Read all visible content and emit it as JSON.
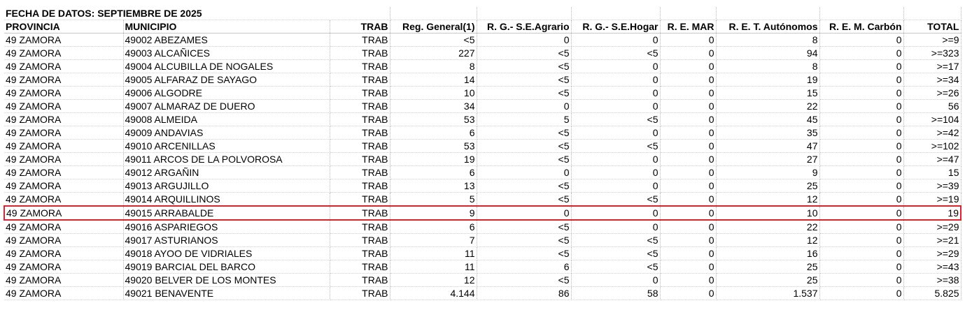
{
  "table": {
    "title": "FECHA DE DATOS: SEPTIEMBRE DE 2025",
    "columns": [
      "PROVINCIA",
      "MUNICIPIO",
      "TRAB",
      "Reg. General(1)",
      "R. G.- S.E.Agrario",
      "R. G.- S.E.Hogar",
      "R. E. MAR",
      "R. E. T. Autónomos",
      "R. E. M. Carbón",
      "TOTAL"
    ],
    "highlight_row": 13,
    "rows": [
      [
        "49 ZAMORA",
        "49002 ABEZAMES",
        "TRAB",
        "<5",
        "0",
        "0",
        "0",
        "8",
        "0",
        ">=9"
      ],
      [
        "49 ZAMORA",
        "49003 ALCAÑICES",
        "TRAB",
        "227",
        "<5",
        "<5",
        "0",
        "94",
        "0",
        ">=323"
      ],
      [
        "49 ZAMORA",
        "49004 ALCUBILLA DE NOGALES",
        "TRAB",
        "8",
        "<5",
        "0",
        "0",
        "8",
        "0",
        ">=17"
      ],
      [
        "49 ZAMORA",
        "49005 ALFARAZ DE SAYAGO",
        "TRAB",
        "14",
        "<5",
        "0",
        "0",
        "19",
        "0",
        ">=34"
      ],
      [
        "49 ZAMORA",
        "49006 ALGODRE",
        "TRAB",
        "10",
        "<5",
        "0",
        "0",
        "15",
        "0",
        ">=26"
      ],
      [
        "49 ZAMORA",
        "49007 ALMARAZ DE DUERO",
        "TRAB",
        "34",
        "0",
        "0",
        "0",
        "22",
        "0",
        "56"
      ],
      [
        "49 ZAMORA",
        "49008 ALMEIDA",
        "TRAB",
        "53",
        "5",
        "<5",
        "0",
        "45",
        "0",
        ">=104"
      ],
      [
        "49 ZAMORA",
        "49009 ANDAVIAS",
        "TRAB",
        "6",
        "<5",
        "0",
        "0",
        "35",
        "0",
        ">=42"
      ],
      [
        "49 ZAMORA",
        "49010 ARCENILLAS",
        "TRAB",
        "53",
        "<5",
        "<5",
        "0",
        "47",
        "0",
        ">=102"
      ],
      [
        "49 ZAMORA",
        "49011 ARCOS DE LA POLVOROSA",
        "TRAB",
        "19",
        "<5",
        "0",
        "0",
        "27",
        "0",
        ">=47"
      ],
      [
        "49 ZAMORA",
        "49012 ARGAÑIN",
        "TRAB",
        "6",
        "0",
        "0",
        "0",
        "9",
        "0",
        "15"
      ],
      [
        "49 ZAMORA",
        "49013 ARGUJILLO",
        "TRAB",
        "13",
        "<5",
        "0",
        "0",
        "25",
        "0",
        ">=39"
      ],
      [
        "49 ZAMORA",
        "49014 ARQUILLINOS",
        "TRAB",
        "5",
        "<5",
        "<5",
        "0",
        "12",
        "0",
        ">=19"
      ],
      [
        "49 ZAMORA",
        "49015 ARRABALDE",
        "TRAB",
        "9",
        "0",
        "0",
        "0",
        "10",
        "0",
        "19"
      ],
      [
        "49 ZAMORA",
        "49016 ASPARIEGOS",
        "TRAB",
        "6",
        "<5",
        "0",
        "0",
        "22",
        "0",
        ">=29"
      ],
      [
        "49 ZAMORA",
        "49017 ASTURIANOS",
        "TRAB",
        "7",
        "<5",
        "<5",
        "0",
        "12",
        "0",
        ">=21"
      ],
      [
        "49 ZAMORA",
        "49018 AYOO DE VIDRIALES",
        "TRAB",
        "11",
        "<5",
        "<5",
        "0",
        "16",
        "0",
        ">=29"
      ],
      [
        "49 ZAMORA",
        "49019 BARCIAL DEL BARCO",
        "TRAB",
        "11",
        "6",
        "<5",
        "0",
        "25",
        "0",
        ">=43"
      ],
      [
        "49 ZAMORA",
        "49020 BELVER DE LOS MONTES",
        "TRAB",
        "12",
        "<5",
        "0",
        "0",
        "25",
        "0",
        ">=38"
      ],
      [
        "49 ZAMORA",
        "49021 BENAVENTE",
        "TRAB",
        "4.144",
        "86",
        "58",
        "0",
        "1.537",
        "0",
        "5.825"
      ]
    ]
  }
}
